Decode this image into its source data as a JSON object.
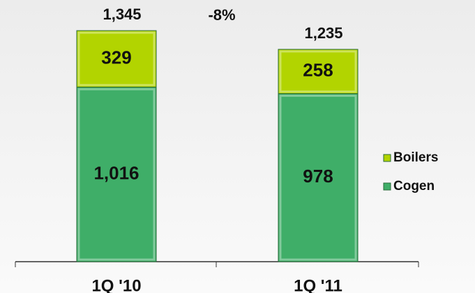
{
  "chart_data": {
    "type": "stacked_bar",
    "categories": [
      "1Q '10",
      "1Q '11"
    ],
    "series": [
      {
        "name": "Cogen",
        "color": "#3fae68",
        "values": [
          1016,
          978
        ],
        "value_labels": [
          "1,016",
          "978"
        ]
      },
      {
        "name": "Boilers",
        "color": "#b2d400",
        "values": [
          329,
          258
        ]
      }
    ],
    "totals": [
      1345,
      1235
    ],
    "total_labels": [
      "1,345",
      "1,235"
    ],
    "annotation": "-8%",
    "legend": "right"
  }
}
